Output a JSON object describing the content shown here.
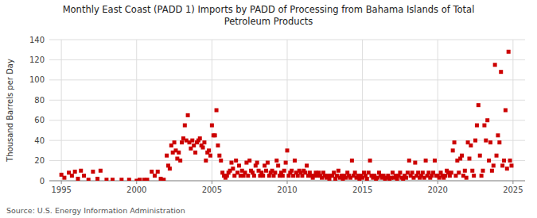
{
  "chart_data": {
    "type": "scatter",
    "title": "Monthly East Coast (PADD 1) Imports by PADD of Processing from Bahama Islands of Total\nPetroleum Products",
    "ylabel": "Thousand Barrels per Day",
    "source": "Source: U.S. Energy Information Administration",
    "color": "#cc0000",
    "marker": "square",
    "grid": true,
    "xlim": [
      1994.2,
      2025.8
    ],
    "ylim": [
      0,
      140
    ],
    "yticks": [
      0,
      20,
      40,
      60,
      80,
      100,
      120,
      140
    ],
    "xticks": [
      1995,
      2000,
      2005,
      2010,
      2015,
      2020,
      2025
    ],
    "x": [
      1995.0,
      1995.2,
      1995.5,
      1995.7,
      1995.9,
      1996.1,
      1996.3,
      1996.5,
      1996.8,
      1997.1,
      1997.4,
      1997.6,
      1998.0,
      1998.4,
      1999.0,
      1999.5,
      2000.0,
      2000.2,
      2000.5,
      2000.7,
      2001.0,
      2001.2,
      2001.4,
      2001.6,
      2001.8,
      2002.0,
      2002.1,
      2002.2,
      2002.3,
      2002.4,
      2002.5,
      2002.6,
      2002.7,
      2002.8,
      2002.9,
      2003.0,
      2003.1,
      2003.2,
      2003.3,
      2003.4,
      2003.5,
      2003.6,
      2003.7,
      2003.8,
      2003.9,
      2004.0,
      2004.1,
      2004.2,
      2004.3,
      2004.4,
      2004.5,
      2004.6,
      2004.7,
      2004.8,
      2004.9,
      2005.0,
      2005.1,
      2005.2,
      2005.3,
      2005.4,
      2005.5,
      2005.6,
      2005.7,
      2005.8,
      2005.9,
      2006.0,
      2006.1,
      2006.2,
      2006.3,
      2006.4,
      2006.5,
      2006.6,
      2006.7,
      2006.8,
      2006.9,
      2007.0,
      2007.1,
      2007.2,
      2007.3,
      2007.4,
      2007.5,
      2007.6,
      2007.7,
      2007.8,
      2007.9,
      2008.0,
      2008.1,
      2008.2,
      2008.3,
      2008.4,
      2008.5,
      2008.6,
      2008.7,
      2008.8,
      2008.9,
      2009.0,
      2009.1,
      2009.2,
      2009.3,
      2009.4,
      2009.5,
      2009.6,
      2009.7,
      2009.8,
      2009.9,
      2010.0,
      2010.1,
      2010.2,
      2010.3,
      2010.4,
      2010.5,
      2010.6,
      2010.7,
      2010.8,
      2010.9,
      2011.0,
      2011.1,
      2011.2,
      2011.3,
      2011.4,
      2011.5,
      2011.6,
      2011.7,
      2011.8,
      2011.9,
      2012.0,
      2012.1,
      2012.2,
      2012.3,
      2012.4,
      2012.5,
      2012.6,
      2012.7,
      2012.8,
      2012.9,
      2013.0,
      2013.1,
      2013.2,
      2013.3,
      2013.4,
      2013.5,
      2013.6,
      2013.7,
      2013.8,
      2013.9,
      2014.0,
      2014.1,
      2014.2,
      2014.3,
      2014.4,
      2014.5,
      2014.6,
      2014.7,
      2014.8,
      2014.9,
      2015.0,
      2015.1,
      2015.2,
      2015.3,
      2015.4,
      2015.5,
      2015.6,
      2015.7,
      2015.8,
      2015.9,
      2016.0,
      2016.1,
      2016.2,
      2016.3,
      2016.4,
      2016.5,
      2016.6,
      2016.7,
      2016.8,
      2016.9,
      2017.0,
      2017.1,
      2017.2,
      2017.3,
      2017.4,
      2017.5,
      2017.6,
      2017.7,
      2017.8,
      2017.9,
      2018.0,
      2018.1,
      2018.2,
      2018.3,
      2018.4,
      2018.5,
      2018.6,
      2018.7,
      2018.8,
      2018.9,
      2019.0,
      2019.1,
      2019.2,
      2019.3,
      2019.4,
      2019.5,
      2019.6,
      2019.7,
      2019.8,
      2019.9,
      2020.0,
      2020.1,
      2020.2,
      2020.3,
      2020.4,
      2020.5,
      2020.6,
      2020.7,
      2020.8,
      2020.9,
      2021.0,
      2021.1,
      2021.2,
      2021.3,
      2021.4,
      2021.5,
      2021.6,
      2021.7,
      2021.8,
      2021.9,
      2022.0,
      2022.1,
      2022.2,
      2022.3,
      2022.4,
      2022.5,
      2022.6,
      2022.7,
      2022.8,
      2022.9,
      2023.0,
      2023.1,
      2023.2,
      2023.3,
      2023.4,
      2023.5,
      2023.6,
      2023.7,
      2023.8,
      2023.9,
      2024.0,
      2024.1,
      2024.2,
      2024.3,
      2024.4,
      2024.5,
      2024.6,
      2024.7,
      2024.8,
      2024.9
    ],
    "values": [
      6,
      3,
      8,
      5,
      9,
      2,
      10,
      5,
      1,
      9,
      2,
      10,
      1,
      1,
      1,
      1,
      0,
      1,
      1,
      1,
      9,
      5,
      9,
      2,
      1,
      25,
      15,
      12,
      35,
      28,
      38,
      30,
      22,
      28,
      20,
      38,
      42,
      55,
      40,
      65,
      38,
      32,
      40,
      35,
      28,
      38,
      40,
      42,
      35,
      33,
      38,
      20,
      28,
      30,
      25,
      55,
      45,
      45,
      70,
      35,
      25,
      20,
      8,
      5,
      3,
      5,
      8,
      10,
      18,
      12,
      5,
      20,
      8,
      15,
      5,
      10,
      5,
      8,
      18,
      5,
      20,
      10,
      8,
      5,
      15,
      18,
      10,
      5,
      8,
      5,
      15,
      10,
      18,
      5,
      8,
      10,
      5,
      8,
      20,
      15,
      5,
      8,
      5,
      10,
      18,
      30,
      5,
      8,
      10,
      5,
      20,
      8,
      5,
      10,
      8,
      5,
      10,
      8,
      15,
      5,
      8,
      5,
      3,
      5,
      8,
      5,
      8,
      5,
      3,
      8,
      5,
      3,
      5,
      2,
      5,
      5,
      8,
      2,
      5,
      10,
      3,
      5,
      2,
      5,
      3,
      8,
      5,
      3,
      20,
      5,
      8,
      3,
      5,
      2,
      5,
      3,
      8,
      5,
      2,
      8,
      20,
      5,
      3,
      5,
      2,
      3,
      8,
      5,
      3,
      5,
      2,
      3,
      5,
      2,
      3,
      8,
      3,
      5,
      2,
      5,
      8,
      3,
      2,
      5,
      3,
      8,
      20,
      5,
      8,
      3,
      18,
      5,
      8,
      3,
      5,
      8,
      3,
      20,
      5,
      8,
      3,
      5,
      8,
      20,
      5,
      5,
      3,
      8,
      5,
      3,
      5,
      10,
      8,
      5,
      8,
      30,
      38,
      5,
      20,
      8,
      22,
      25,
      5,
      10,
      3,
      38,
      22,
      35,
      10,
      5,
      40,
      55,
      75,
      25,
      5,
      10,
      55,
      40,
      60,
      20,
      38,
      10,
      15,
      115,
      25,
      45,
      38,
      108,
      15,
      20,
      70,
      12,
      128,
      20,
      15
    ]
  }
}
